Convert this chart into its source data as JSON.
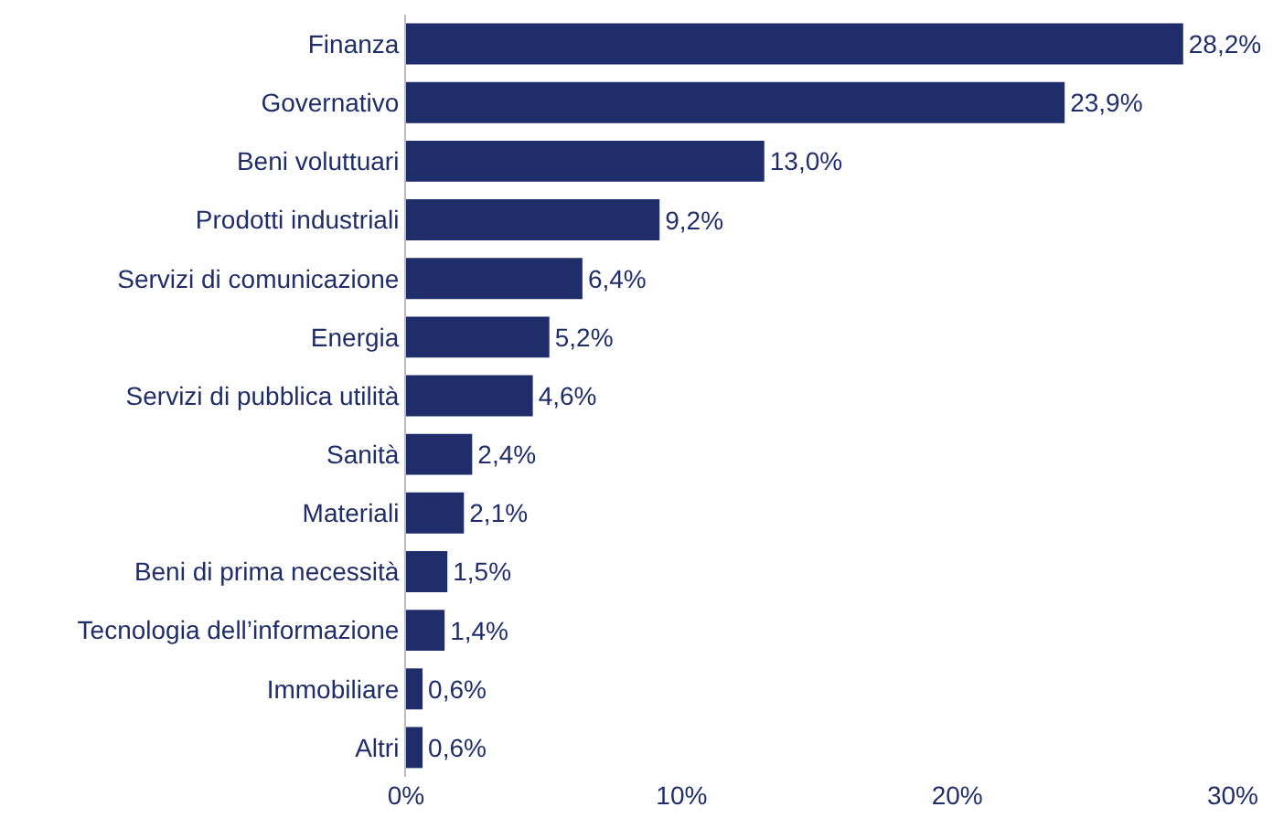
{
  "chart_data": {
    "type": "bar",
    "orientation": "horizontal",
    "categories": [
      "Finanza",
      "Governativo",
      "Beni voluttuari",
      "Prodotti industriali",
      "Servizi di comunicazione",
      "Energia",
      "Servizi di pubblica utilità",
      "Sanità",
      "Materiali",
      "Beni di prima necessità",
      "Tecnologia dell’informazione",
      "Immobiliare",
      "Altri"
    ],
    "values": [
      28.2,
      23.9,
      13.0,
      9.2,
      6.4,
      5.2,
      4.6,
      2.4,
      2.1,
      1.5,
      1.4,
      0.6,
      0.6
    ],
    "value_labels": [
      "28,2%",
      "23,9%",
      "13,0%",
      "9,2%",
      "6,4%",
      "5,2%",
      "4,6%",
      "2,4%",
      "2,1%",
      "1,5%",
      "1,4%",
      "0,6%",
      "0,6%"
    ],
    "color": "#1f2d6b",
    "xlim": [
      0,
      30
    ],
    "xticks": [
      {
        "value": 0,
        "label": "0%"
      },
      {
        "value": 10,
        "label": "10%"
      },
      {
        "value": 20,
        "label": "20%"
      },
      {
        "value": 30,
        "label": "30%"
      }
    ]
  }
}
